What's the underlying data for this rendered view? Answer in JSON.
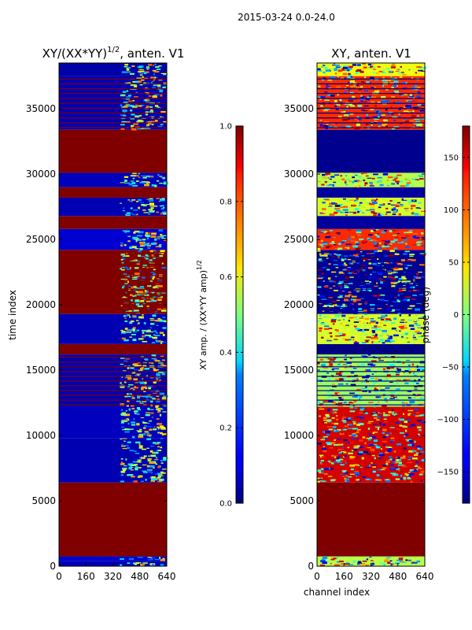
{
  "suptitle": "2015-03-24 0.0-24.0",
  "chart_data": [
    {
      "type": "heatmap",
      "title": "XY/(XX*YY)",
      "title_exponent": "1/2",
      "title_suffix": ", anten. V1",
      "xlabel": "",
      "ylabel": "time index",
      "xlim": [
        0,
        640
      ],
      "ylim": [
        0,
        38500
      ],
      "xticks": [
        "0",
        "160",
        "320",
        "480",
        "640"
      ],
      "yticks": [
        "0",
        "5000",
        "10000",
        "15000",
        "20000",
        "25000",
        "30000",
        "35000"
      ],
      "ytick_values": [
        0,
        5000,
        10000,
        15000,
        20000,
        25000,
        30000,
        35000
      ],
      "colorbar": {
        "label": "XY amp. / (XX*YY amp)",
        "label_exponent": "1/2",
        "range": [
          0.0,
          1.0
        ],
        "ticks": [
          "0.0",
          "0.2",
          "0.4",
          "0.6",
          "0.8",
          "1.0"
        ],
        "tick_values": [
          0.0,
          0.2,
          0.4,
          0.6,
          0.8,
          1.0
        ]
      },
      "bands": [
        {
          "y0": 0,
          "y1": 400,
          "value": 0.05,
          "mode": "noisy"
        },
        {
          "y0": 400,
          "y1": 750,
          "value": 0.08,
          "mode": "noisy"
        },
        {
          "y0": 750,
          "y1": 6400,
          "value": 1.0,
          "mode": "solid"
        },
        {
          "y0": 6400,
          "y1": 9800,
          "value": 0.05,
          "mode": "noisy"
        },
        {
          "y0": 9800,
          "y1": 12200,
          "value": 0.06,
          "mode": "noisy"
        },
        {
          "y0": 12200,
          "y1": 16200,
          "value": 0.05,
          "mode": "striped"
        },
        {
          "y0": 16200,
          "y1": 17000,
          "value": 1.0,
          "mode": "solid"
        },
        {
          "y0": 17000,
          "y1": 19300,
          "value": 0.05,
          "mode": "noisy"
        },
        {
          "y0": 19300,
          "y1": 24200,
          "value": 1.0,
          "mode": "striped"
        },
        {
          "y0": 24200,
          "y1": 25800,
          "value": 0.08,
          "mode": "noisy"
        },
        {
          "y0": 25800,
          "y1": 26800,
          "value": 1.0,
          "mode": "solid"
        },
        {
          "y0": 26800,
          "y1": 28200,
          "value": 0.05,
          "mode": "noisy"
        },
        {
          "y0": 28200,
          "y1": 29000,
          "value": 1.0,
          "mode": "solid"
        },
        {
          "y0": 29000,
          "y1": 30100,
          "value": 0.06,
          "mode": "noisy"
        },
        {
          "y0": 30100,
          "y1": 33400,
          "value": 1.0,
          "mode": "solid"
        },
        {
          "y0": 33400,
          "y1": 37500,
          "value": 0.05,
          "mode": "striped"
        },
        {
          "y0": 37500,
          "y1": 38500,
          "value": 0.04,
          "mode": "noisy"
        }
      ]
    },
    {
      "type": "heatmap",
      "title": "XY, anten. V1",
      "xlabel": "channel index",
      "ylabel": "",
      "xlim": [
        0,
        640
      ],
      "ylim": [
        0,
        38500
      ],
      "xticks": [
        "0",
        "160",
        "320",
        "480",
        "640"
      ],
      "yticks": [
        "0",
        "5000",
        "10000",
        "15000",
        "20000",
        "25000",
        "30000",
        "35000"
      ],
      "ytick_values": [
        0,
        5000,
        10000,
        15000,
        20000,
        25000,
        30000,
        35000
      ],
      "colorbar": {
        "label": "phase (deg)",
        "range": [
          -180,
          180
        ],
        "ticks": [
          "−150",
          "−100",
          "−50",
          "0",
          "50",
          "100",
          "150"
        ],
        "tick_values": [
          -150,
          -100,
          -50,
          0,
          50,
          100,
          150
        ]
      },
      "bands": [
        {
          "y0": 0,
          "y1": 750,
          "value": 20,
          "mode": "noisy"
        },
        {
          "y0": 750,
          "y1": 6400,
          "value": 180,
          "mode": "solid"
        },
        {
          "y0": 6400,
          "y1": 12200,
          "value": 150,
          "mode": "noisy"
        },
        {
          "y0": 12200,
          "y1": 16200,
          "value": 10,
          "mode": "striped"
        },
        {
          "y0": 16200,
          "y1": 17000,
          "value": -180,
          "mode": "solid"
        },
        {
          "y0": 17000,
          "y1": 19300,
          "value": 30,
          "mode": "noisy"
        },
        {
          "y0": 19300,
          "y1": 24200,
          "value": -170,
          "mode": "striped"
        },
        {
          "y0": 24200,
          "y1": 25800,
          "value": 120,
          "mode": "noisy"
        },
        {
          "y0": 25800,
          "y1": 26800,
          "value": -170,
          "mode": "solid"
        },
        {
          "y0": 26800,
          "y1": 28200,
          "value": 30,
          "mode": "noisy"
        },
        {
          "y0": 28200,
          "y1": 29000,
          "value": -170,
          "mode": "solid"
        },
        {
          "y0": 29000,
          "y1": 30100,
          "value": 20,
          "mode": "noisy"
        },
        {
          "y0": 30100,
          "y1": 33400,
          "value": -175,
          "mode": "solid"
        },
        {
          "y0": 33400,
          "y1": 37500,
          "value": 120,
          "mode": "striped"
        },
        {
          "y0": 37500,
          "y1": 38500,
          "value": 40,
          "mode": "noisy"
        }
      ]
    }
  ]
}
